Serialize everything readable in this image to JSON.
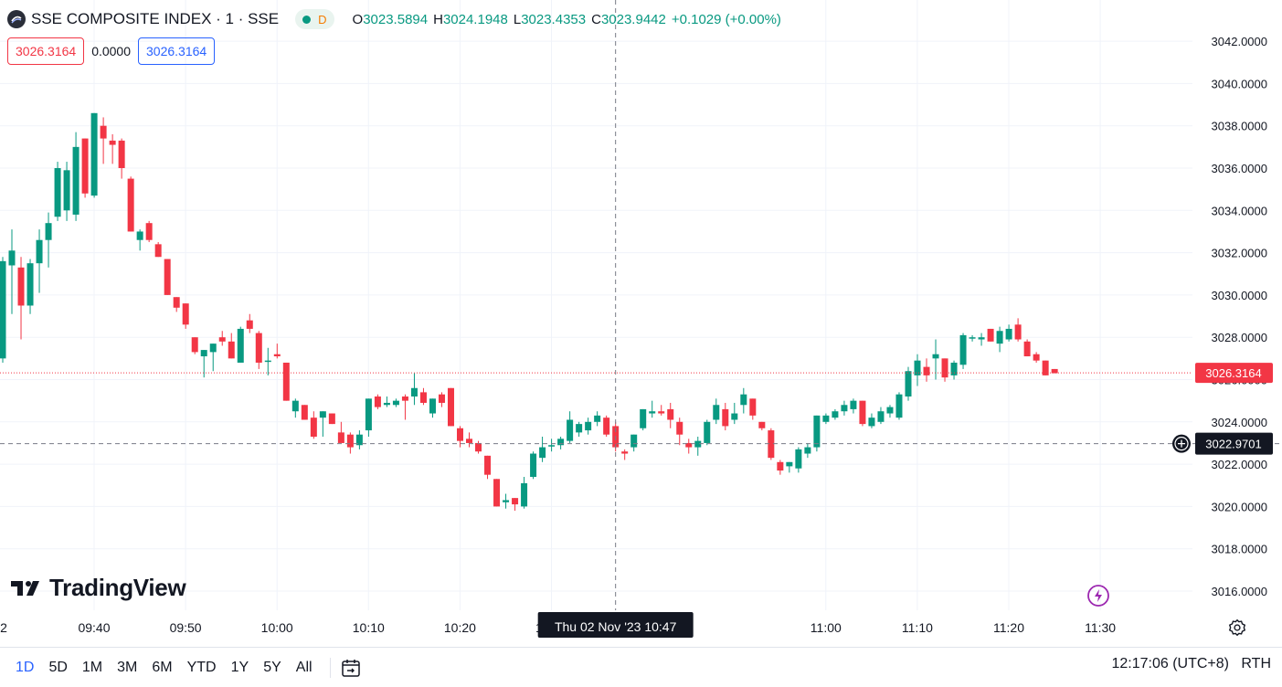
{
  "header": {
    "symbol_title": "SSE COMPOSITE INDEX · 1 · SSE",
    "status_badge": "D",
    "ohlc": {
      "o_label": "O",
      "o_value": "3023.5894",
      "h_label": "H",
      "h_value": "3024.1948",
      "l_label": "L",
      "l_value": "3023.4353",
      "c_label": "C",
      "c_value": "3023.9442",
      "change": "+0.1029 (+0.00%)"
    }
  },
  "quote_boxes": {
    "sell": "3026.3164",
    "spread": "0.0000",
    "buy": "3026.3164"
  },
  "logo_text": "TradingView",
  "crosshair": {
    "time_label": "Thu 02 Nov '23   10:47",
    "price_label": "3022.9701",
    "price_value": 3022.9701,
    "time_index": 67
  },
  "last_price": {
    "label": "3026.3164",
    "value": 3026.3164
  },
  "timeframes": [
    "1D",
    "5D",
    "1M",
    "3M",
    "6M",
    "YTD",
    "1Y",
    "5Y",
    "All"
  ],
  "active_timeframe": "1D",
  "clock": "12:17:06 (UTC+8)",
  "session": "RTH",
  "colors": {
    "up": "#089981",
    "down": "#f23645",
    "accent": "#2962ff"
  },
  "chart_data": {
    "type": "candlestick",
    "title": "SSE COMPOSITE INDEX · 1 · SSE",
    "y_ticks": [
      "3016.0000",
      "3018.0000",
      "3020.0000",
      "3022.0000",
      "3024.0000",
      "3026.0000",
      "3028.0000",
      "3030.0000",
      "3032.0000",
      "3034.0000",
      "3036.0000",
      "3038.0000",
      "3040.0000",
      "3042.0000"
    ],
    "y_tick_values": [
      3016,
      3018,
      3020,
      3022,
      3024,
      3026,
      3028,
      3030,
      3032,
      3034,
      3036,
      3038,
      3040,
      3042
    ],
    "ylim": [
      3014.9,
      3042.9
    ],
    "x_ticks": [
      {
        "label": "2",
        "index": -10
      },
      {
        "label": "09:40",
        "index": 0
      },
      {
        "label": "09:50",
        "index": 10
      },
      {
        "label": "10:00",
        "index": 20
      },
      {
        "label": "10:10",
        "index": 30
      },
      {
        "label": "10:20",
        "index": 40
      },
      {
        "label": "10:30",
        "index": 50
      },
      {
        "label": "11:00",
        "index": 80
      },
      {
        "label": "11:10",
        "index": 90
      },
      {
        "label": "11:20",
        "index": 100
      },
      {
        "label": "11:30",
        "index": 110
      }
    ],
    "candles": [
      {
        "o": 3027.0,
        "h": 3031.8,
        "l": 3026.8,
        "c": 3031.6
      },
      {
        "o": 3031.4,
        "h": 3033.1,
        "l": 3029.1,
        "c": 3032.1
      },
      {
        "o": 3031.3,
        "h": 3031.8,
        "l": 3027.9,
        "c": 3029.5
      },
      {
        "o": 3029.5,
        "h": 3031.7,
        "l": 3029.1,
        "c": 3031.5
      },
      {
        "o": 3031.5,
        "h": 3033.1,
        "l": 3030.1,
        "c": 3032.6
      },
      {
        "o": 3032.6,
        "h": 3033.9,
        "l": 3031.3,
        "c": 3033.4
      },
      {
        "o": 3033.7,
        "h": 3036.3,
        "l": 3033.5,
        "c": 3036.0
      },
      {
        "o": 3034.0,
        "h": 3036.3,
        "l": 3033.5,
        "c": 3035.9
      },
      {
        "o": 3033.8,
        "h": 3037.7,
        "l": 3033.5,
        "c": 3037.0
      },
      {
        "o": 3037.4,
        "h": 3037.4,
        "l": 3034.6,
        "c": 3034.8
      },
      {
        "o": 3034.7,
        "h": 3038.6,
        "l": 3034.6,
        "c": 3038.6
      },
      {
        "o": 3038.0,
        "h": 3038.4,
        "l": 3036.2,
        "c": 3037.4
      },
      {
        "o": 3037.3,
        "h": 3037.6,
        "l": 3036.2,
        "c": 3037.1
      },
      {
        "o": 3037.3,
        "h": 3037.4,
        "l": 3035.5,
        "c": 3036.0
      },
      {
        "o": 3035.5,
        "h": 3035.6,
        "l": 3033.0,
        "c": 3033.0
      },
      {
        "o": 3032.6,
        "h": 3033.1,
        "l": 3032.1,
        "c": 3033.0
      },
      {
        "o": 3033.4,
        "h": 3033.5,
        "l": 3032.5,
        "c": 3032.6
      },
      {
        "o": 3032.4,
        "h": 3032.5,
        "l": 3031.8,
        "c": 3031.8
      },
      {
        "o": 3031.7,
        "h": 3031.7,
        "l": 3030.0,
        "c": 3030.0
      },
      {
        "o": 3029.9,
        "h": 3029.9,
        "l": 3029.2,
        "c": 3029.4
      },
      {
        "o": 3029.6,
        "h": 3029.6,
        "l": 3028.4,
        "c": 3028.6
      },
      {
        "o": 3028.0,
        "h": 3028.0,
        "l": 3027.2,
        "c": 3027.3
      },
      {
        "o": 3027.1,
        "h": 3027.4,
        "l": 3026.1,
        "c": 3027.4
      },
      {
        "o": 3027.3,
        "h": 3027.7,
        "l": 3026.4,
        "c": 3027.7
      },
      {
        "o": 3028.0,
        "h": 3028.3,
        "l": 3027.6,
        "c": 3027.8
      },
      {
        "o": 3027.8,
        "h": 3028.2,
        "l": 3027.0,
        "c": 3027.0
      },
      {
        "o": 3026.8,
        "h": 3028.5,
        "l": 3026.8,
        "c": 3028.4
      },
      {
        "o": 3028.8,
        "h": 3029.1,
        "l": 3028.2,
        "c": 3028.4
      },
      {
        "o": 3028.2,
        "h": 3028.3,
        "l": 3026.5,
        "c": 3026.8
      },
      {
        "o": 3026.9,
        "h": 3027.5,
        "l": 3026.2,
        "c": 3026.9
      },
      {
        "o": 3027.2,
        "h": 3027.7,
        "l": 3027.0,
        "c": 3027.1
      },
      {
        "o": 3026.8,
        "h": 3026.8,
        "l": 3025.0,
        "c": 3025.0
      },
      {
        "o": 3024.5,
        "h": 3025.1,
        "l": 3024.2,
        "c": 3025.0
      },
      {
        "o": 3024.8,
        "h": 3024.8,
        "l": 3024.1,
        "c": 3024.1
      },
      {
        "o": 3024.2,
        "h": 3024.5,
        "l": 3023.2,
        "c": 3023.3
      },
      {
        "o": 3024.2,
        "h": 3024.5,
        "l": 3023.3,
        "c": 3024.5
      },
      {
        "o": 3024.4,
        "h": 3024.4,
        "l": 3023.9,
        "c": 3023.9
      },
      {
        "o": 3023.5,
        "h": 3024.0,
        "l": 3023.2,
        "c": 3023.0
      },
      {
        "o": 3023.4,
        "h": 3023.5,
        "l": 3022.5,
        "c": 3022.8
      },
      {
        "o": 3022.9,
        "h": 3023.6,
        "l": 3022.7,
        "c": 3023.4
      },
      {
        "o": 3023.6,
        "h": 3025.1,
        "l": 3023.3,
        "c": 3025.1
      },
      {
        "o": 3025.2,
        "h": 3025.3,
        "l": 3024.6,
        "c": 3024.7
      },
      {
        "o": 3024.8,
        "h": 3025.2,
        "l": 3024.7,
        "c": 3024.9
      },
      {
        "o": 3024.8,
        "h": 3025.1,
        "l": 3024.7,
        "c": 3025.0
      },
      {
        "o": 3025.2,
        "h": 3025.3,
        "l": 3024.1,
        "c": 3025.0
      },
      {
        "o": 3025.2,
        "h": 3026.3,
        "l": 3024.8,
        "c": 3025.6
      },
      {
        "o": 3025.4,
        "h": 3025.6,
        "l": 3024.8,
        "c": 3024.9
      },
      {
        "o": 3024.4,
        "h": 3025.1,
        "l": 3024.2,
        "c": 3025.1
      },
      {
        "o": 3025.3,
        "h": 3025.4,
        "l": 3024.7,
        "c": 3024.9
      },
      {
        "o": 3025.6,
        "h": 3025.6,
        "l": 3023.8,
        "c": 3023.8
      },
      {
        "o": 3023.7,
        "h": 3023.8,
        "l": 3022.8,
        "c": 3023.1
      },
      {
        "o": 3023.2,
        "h": 3023.5,
        "l": 3022.8,
        "c": 3023.0
      },
      {
        "o": 3023.0,
        "h": 3023.1,
        "l": 3022.5,
        "c": 3022.6
      },
      {
        "o": 3022.4,
        "h": 3022.4,
        "l": 3021.3,
        "c": 3021.5
      },
      {
        "o": 3021.3,
        "h": 3021.3,
        "l": 3020.0,
        "c": 3020.0
      },
      {
        "o": 3020.2,
        "h": 3020.6,
        "l": 3019.9,
        "c": 3020.3
      },
      {
        "o": 3020.4,
        "h": 3020.4,
        "l": 3019.8,
        "c": 3020.1
      },
      {
        "o": 3020.0,
        "h": 3021.4,
        "l": 3019.9,
        "c": 3021.1
      },
      {
        "o": 3021.4,
        "h": 3022.6,
        "l": 3021.3,
        "c": 3022.5
      },
      {
        "o": 3022.3,
        "h": 3023.3,
        "l": 3022.1,
        "c": 3022.8
      },
      {
        "o": 3022.9,
        "h": 3023.2,
        "l": 3022.6,
        "c": 3022.9
      },
      {
        "o": 3022.9,
        "h": 3023.3,
        "l": 3022.7,
        "c": 3023.2
      },
      {
        "o": 3023.1,
        "h": 3024.5,
        "l": 3023.0,
        "c": 3024.1
      },
      {
        "o": 3023.5,
        "h": 3024.0,
        "l": 3023.3,
        "c": 3023.9
      },
      {
        "o": 3023.6,
        "h": 3024.2,
        "l": 3023.4,
        "c": 3024.0
      },
      {
        "o": 3024.0,
        "h": 3024.5,
        "l": 3023.8,
        "c": 3024.3
      },
      {
        "o": 3024.2,
        "h": 3024.3,
        "l": 3023.3,
        "c": 3023.4
      },
      {
        "o": 3023.8,
        "h": 3024.0,
        "l": 3022.6,
        "c": 3022.8
      },
      {
        "o": 3022.6,
        "h": 3022.7,
        "l": 3022.2,
        "c": 3022.5
      },
      {
        "o": 3022.8,
        "h": 3023.4,
        "l": 3022.6,
        "c": 3023.4
      },
      {
        "o": 3023.7,
        "h": 3024.6,
        "l": 3023.6,
        "c": 3024.6
      },
      {
        "o": 3024.4,
        "h": 3025.0,
        "l": 3024.2,
        "c": 3024.5
      },
      {
        "o": 3024.5,
        "h": 3024.8,
        "l": 3024.3,
        "c": 3024.4
      },
      {
        "o": 3024.6,
        "h": 3024.9,
        "l": 3023.7,
        "c": 3024.1
      },
      {
        "o": 3024.0,
        "h": 3024.2,
        "l": 3022.9,
        "c": 3023.4
      },
      {
        "o": 3023.0,
        "h": 3023.2,
        "l": 3022.5,
        "c": 3022.8
      },
      {
        "o": 3022.8,
        "h": 3023.3,
        "l": 3022.4,
        "c": 3023.1
      },
      {
        "o": 3023.0,
        "h": 3024.1,
        "l": 3022.9,
        "c": 3024.0
      },
      {
        "o": 3024.1,
        "h": 3025.1,
        "l": 3023.9,
        "c": 3024.8
      },
      {
        "o": 3024.6,
        "h": 3024.9,
        "l": 3023.6,
        "c": 3023.8
      },
      {
        "o": 3024.1,
        "h": 3024.9,
        "l": 3023.9,
        "c": 3024.4
      },
      {
        "o": 3024.8,
        "h": 3025.6,
        "l": 3024.4,
        "c": 3025.3
      },
      {
        "o": 3025.1,
        "h": 3025.1,
        "l": 3024.1,
        "c": 3024.3
      },
      {
        "o": 3024.0,
        "h": 3024.0,
        "l": 3023.6,
        "c": 3023.7
      },
      {
        "o": 3023.6,
        "h": 3023.7,
        "l": 3022.2,
        "c": 3022.3
      },
      {
        "o": 3022.1,
        "h": 3022.2,
        "l": 3021.5,
        "c": 3021.7
      },
      {
        "o": 3021.9,
        "h": 3022.1,
        "l": 3021.6,
        "c": 3022.1
      },
      {
        "o": 3021.8,
        "h": 3022.8,
        "l": 3021.6,
        "c": 3022.7
      },
      {
        "o": 3022.5,
        "h": 3023.0,
        "l": 3022.3,
        "c": 3022.8
      },
      {
        "o": 3022.8,
        "h": 3024.3,
        "l": 3022.6,
        "c": 3024.3
      },
      {
        "o": 3024.0,
        "h": 3024.4,
        "l": 3023.9,
        "c": 3024.3
      },
      {
        "o": 3024.2,
        "h": 3024.6,
        "l": 3024.1,
        "c": 3024.5
      },
      {
        "o": 3024.5,
        "h": 3025.0,
        "l": 3024.3,
        "c": 3024.8
      },
      {
        "o": 3024.6,
        "h": 3025.1,
        "l": 3024.4,
        "c": 3025.0
      },
      {
        "o": 3025.0,
        "h": 3025.0,
        "l": 3023.8,
        "c": 3023.9
      },
      {
        "o": 3023.8,
        "h": 3024.4,
        "l": 3023.7,
        "c": 3024.2
      },
      {
        "o": 3024.0,
        "h": 3024.7,
        "l": 3023.9,
        "c": 3024.5
      },
      {
        "o": 3024.4,
        "h": 3024.8,
        "l": 3024.2,
        "c": 3024.7
      },
      {
        "o": 3024.2,
        "h": 3025.4,
        "l": 3024.1,
        "c": 3025.3
      },
      {
        "o": 3025.2,
        "h": 3026.6,
        "l": 3025.0,
        "c": 3026.4
      },
      {
        "o": 3026.2,
        "h": 3027.2,
        "l": 3025.7,
        "c": 3026.9
      },
      {
        "o": 3026.6,
        "h": 3027.0,
        "l": 3025.9,
        "c": 3026.2
      },
      {
        "o": 3027.0,
        "h": 3027.9,
        "l": 3026.0,
        "c": 3027.2
      },
      {
        "o": 3027.0,
        "h": 3027.0,
        "l": 3025.9,
        "c": 3026.1
      },
      {
        "o": 3026.2,
        "h": 3026.9,
        "l": 3026.0,
        "c": 3026.8
      },
      {
        "o": 3026.7,
        "h": 3028.2,
        "l": 3026.5,
        "c": 3028.1
      },
      {
        "o": 3028.0,
        "h": 3028.1,
        "l": 3027.8,
        "c": 3028.0
      },
      {
        "o": 3027.9,
        "h": 3028.2,
        "l": 3027.6,
        "c": 3028.0
      },
      {
        "o": 3028.4,
        "h": 3028.4,
        "l": 3027.8,
        "c": 3027.8
      },
      {
        "o": 3027.7,
        "h": 3028.5,
        "l": 3027.3,
        "c": 3028.3
      },
      {
        "o": 3027.9,
        "h": 3028.6,
        "l": 3027.8,
        "c": 3028.4
      },
      {
        "o": 3028.6,
        "h": 3028.9,
        "l": 3027.8,
        "c": 3027.9
      },
      {
        "o": 3027.8,
        "h": 3027.9,
        "l": 3027.1,
        "c": 3027.1
      },
      {
        "o": 3027.2,
        "h": 3027.3,
        "l": 3026.8,
        "c": 3026.9
      },
      {
        "o": 3026.9,
        "h": 3026.9,
        "l": 3026.2,
        "c": 3026.2
      },
      {
        "o": 3026.5,
        "h": 3026.5,
        "l": 3026.3,
        "c": 3026.3
      }
    ]
  }
}
